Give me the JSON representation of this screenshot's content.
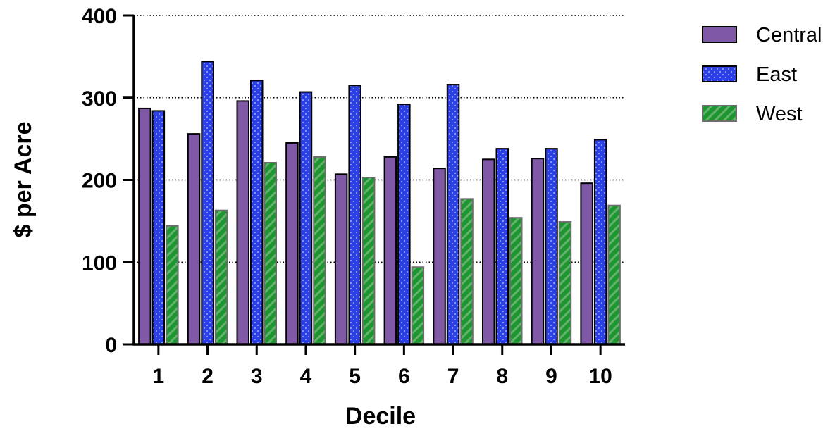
{
  "chart_data": {
    "type": "bar",
    "title": "",
    "xlabel": "Decile",
    "ylabel": "$ per Acre",
    "categories": [
      "1",
      "2",
      "3",
      "4",
      "5",
      "6",
      "7",
      "8",
      "9",
      "10"
    ],
    "ylim": [
      0,
      400
    ],
    "yticks": [
      "0",
      "100",
      "200",
      "300",
      "400"
    ],
    "grid": "horizontal-dotted",
    "legend_position": "top-right",
    "series": [
      {
        "name": "Central",
        "color": "#7f58a6",
        "pattern": "solid",
        "values": [
          287,
          256,
          296,
          245,
          207,
          228,
          214,
          225,
          226,
          196
        ]
      },
      {
        "name": "East",
        "color": "#2b3fe6",
        "pattern": "dots",
        "values": [
          284,
          344,
          321,
          307,
          315,
          292,
          316,
          238,
          238,
          249
        ]
      },
      {
        "name": "West",
        "color": "#1e9630",
        "pattern": "stripes",
        "values": [
          144,
          163,
          221,
          228,
          203,
          94,
          177,
          154,
          149,
          169
        ]
      }
    ]
  }
}
